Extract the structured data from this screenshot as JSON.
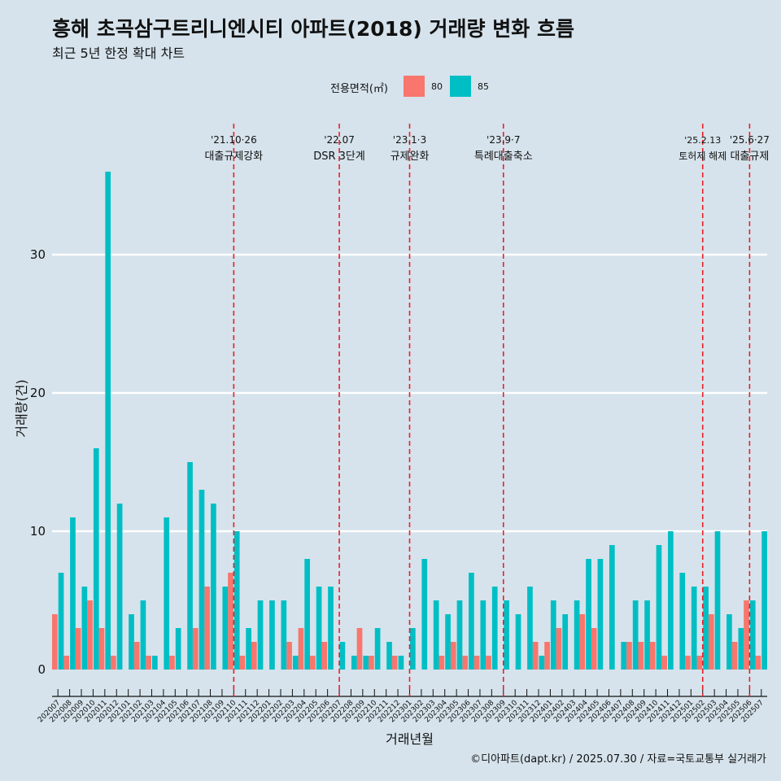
{
  "title": "흥해 초곡삼구트리니엔시티 아파트(2018) 거래량 변화 흐름",
  "subtitle": "최근 5년 한정 확대 차트",
  "caption": "©디아파트(dapt.kr) / 2025.07.30 / 자료=국토교통부 실거래가",
  "legend": {
    "title": "전용면적(㎡)",
    "items": [
      {
        "label": "80",
        "color": "#f8766d"
      },
      {
        "label": "85",
        "color": "#00bfc4"
      }
    ]
  },
  "chart_data": {
    "type": "bar",
    "xlabel": "거래년월",
    "ylabel": "거래량(건)",
    "ylim": [
      0,
      37
    ],
    "yticks": [
      0,
      10,
      20,
      30
    ],
    "grid": true,
    "legend_position": "top",
    "categories": [
      "202007",
      "202008",
      "202009",
      "202010",
      "202011",
      "202012",
      "202101",
      "202102",
      "202103",
      "202104",
      "202105",
      "202106",
      "202107",
      "202108",
      "202109",
      "202110",
      "202111",
      "202112",
      "202201",
      "202202",
      "202203",
      "202204",
      "202205",
      "202206",
      "202207",
      "202208",
      "202209",
      "202210",
      "202211",
      "202212",
      "202301",
      "202302",
      "202303",
      "202304",
      "202305",
      "202306",
      "202307",
      "202308",
      "202309",
      "202310",
      "202311",
      "202312",
      "202401",
      "202402",
      "202403",
      "202404",
      "202405",
      "202406",
      "202407",
      "202408",
      "202409",
      "202410",
      "202411",
      "202412",
      "202501",
      "202502",
      "202503",
      "202504",
      "202505",
      "202506",
      "202507"
    ],
    "series": [
      {
        "name": "80",
        "color": "#f8766d",
        "values": [
          4,
          1,
          3,
          5,
          3,
          1,
          0,
          2,
          1,
          0,
          1,
          0,
          3,
          6,
          0,
          7,
          1,
          2,
          0,
          0,
          2,
          3,
          1,
          2,
          0,
          0,
          3,
          1,
          0,
          1,
          0,
          0,
          0,
          1,
          2,
          1,
          1,
          1,
          0,
          0,
          0,
          2,
          2,
          3,
          0,
          4,
          3,
          0,
          0,
          2,
          2,
          2,
          1,
          0,
          1,
          1,
          4,
          0,
          2,
          5,
          1
        ]
      },
      {
        "name": "85",
        "color": "#00bfc4",
        "values": [
          7,
          11,
          6,
          16,
          36,
          12,
          4,
          5,
          1,
          11,
          3,
          15,
          13,
          12,
          6,
          10,
          3,
          5,
          5,
          5,
          1,
          8,
          6,
          6,
          2,
          1,
          1,
          3,
          2,
          1,
          3,
          8,
          5,
          4,
          5,
          7,
          5,
          6,
          5,
          4,
          6,
          1,
          5,
          4,
          5,
          8,
          8,
          9,
          2,
          5,
          5,
          9,
          10,
          7,
          6,
          6,
          10,
          4,
          3,
          5,
          10
        ]
      }
    ],
    "annotations": [
      {
        "category": "202110",
        "label_top": "'21.10·26",
        "label_bottom": "대출규제강화"
      },
      {
        "category": "202207",
        "label_top": "'22.07",
        "label_bottom": "DSR 3단계"
      },
      {
        "category": "202301",
        "label_top": "'23.1·3",
        "label_bottom": "규제완화"
      },
      {
        "category": "202309",
        "label_top": "'23.9·7",
        "label_bottom": "특례대출축소"
      },
      {
        "category": "202502",
        "label_top": "'25.2.13",
        "label_bottom": "토허제 해제"
      },
      {
        "category": "202506",
        "label_top": "'25.6·27",
        "label_bottom": "대출규제"
      }
    ]
  }
}
